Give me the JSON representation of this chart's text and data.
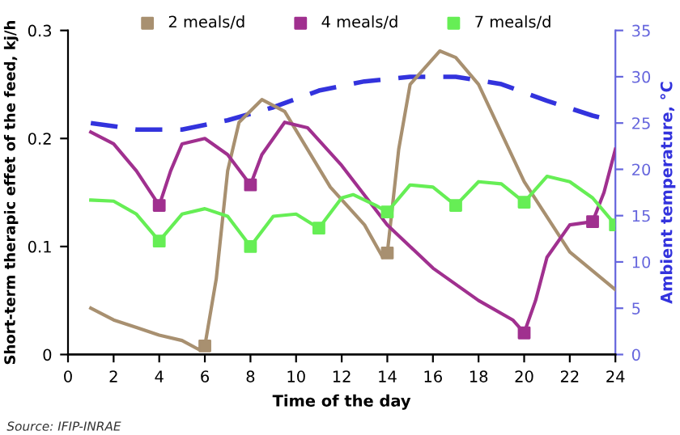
{
  "chart_data": {
    "type": "line",
    "xlabel": "Time of the day",
    "ylabel": "Short-term therapic effet of the feed, kj/h",
    "y2label": "Ambient temperature, °C",
    "xlim": [
      0,
      24
    ],
    "xticks": [
      0,
      2,
      4,
      6,
      8,
      10,
      12,
      14,
      16,
      18,
      20,
      22,
      24
    ],
    "ylim": [
      0,
      0.3
    ],
    "yticks": [
      0,
      0.1,
      0.2,
      0.3
    ],
    "y2lim": [
      0,
      35
    ],
    "y2ticks": [
      0,
      5,
      10,
      15,
      20,
      25,
      30,
      35
    ],
    "grid": false,
    "legend": "top",
    "marker": "none",
    "line_style": "solid",
    "annotations": [
      "Source: IFIP-INRAE"
    ],
    "series": [
      {
        "color": "#a89070",
        "x": [
          1,
          2,
          3,
          4,
          5,
          5.7,
          6,
          6.5,
          7,
          7.5,
          8.5,
          9.5,
          10.5,
          11.5,
          13,
          13.8,
          14,
          14.5,
          15,
          16.3,
          17,
          18,
          20,
          22,
          24
        ],
        "values": [
          0.043,
          0.032,
          0.025,
          0.018,
          0.013,
          0.005,
          0.008,
          0.07,
          0.17,
          0.215,
          0.236,
          0.225,
          0.19,
          0.155,
          0.12,
          0.09,
          0.094,
          0.19,
          0.25,
          0.281,
          0.275,
          0.25,
          0.16,
          0.095,
          0.06
        ]
      },
      {
        "color": "#a0308f",
        "x": [
          1,
          2,
          3,
          4,
          4.5,
          5,
          6,
          7,
          8,
          8.5,
          9.5,
          10.5,
          12,
          14,
          16,
          18,
          19.5,
          20,
          20.5,
          21,
          22,
          23,
          23.5,
          24
        ],
        "values": [
          0.206,
          0.195,
          0.17,
          0.138,
          0.17,
          0.195,
          0.2,
          0.185,
          0.157,
          0.185,
          0.215,
          0.21,
          0.175,
          0.12,
          0.08,
          0.05,
          0.032,
          0.02,
          0.05,
          0.09,
          0.12,
          0.123,
          0.15,
          0.19
        ]
      },
      {
        "color": "#66ee55",
        "x": [
          1,
          2,
          3,
          4,
          5,
          6,
          7,
          8,
          9,
          10,
          11,
          12,
          12.5,
          13.5,
          14,
          15,
          16,
          17,
          18,
          19,
          20,
          21,
          22,
          23,
          24
        ],
        "values": [
          0.143,
          0.142,
          0.13,
          0.105,
          0.13,
          0.135,
          0.128,
          0.1,
          0.128,
          0.13,
          0.117,
          0.145,
          0.148,
          0.138,
          0.132,
          0.157,
          0.155,
          0.138,
          0.16,
          0.158,
          0.141,
          0.165,
          0.16,
          0.145,
          0.12
        ]
      },
      {
        "color": "#3333dd",
        "axis": "y2",
        "line_style": "dashed",
        "x": [
          1,
          3,
          5,
          7,
          9,
          11,
          13,
          15,
          17,
          19,
          21,
          23,
          24
        ],
        "values": [
          25,
          24.3,
          24.3,
          25.3,
          26.7,
          28.5,
          29.5,
          30,
          30,
          29.2,
          27.4,
          25.8,
          25.2
        ]
      },
      {
        "type": "scatter",
        "name": "2 meals/d",
        "color": "#a89070",
        "marker": "square",
        "x": [
          6,
          14
        ],
        "values": [
          0.008,
          0.094
        ]
      },
      {
        "type": "scatter",
        "name": "4 meals/d",
        "color": "#a0308f",
        "marker": "square",
        "x": [
          4,
          8,
          20,
          23
        ],
        "values": [
          0.138,
          0.157,
          0.02,
          0.123
        ]
      },
      {
        "type": "scatter",
        "name": "7 meals/d",
        "color": "#66ee55",
        "marker": "square",
        "x": [
          4,
          8,
          11,
          14,
          17,
          20,
          24
        ],
        "values": [
          0.105,
          0.1,
          0.117,
          0.132,
          0.138,
          0.141,
          0.12
        ]
      }
    ]
  }
}
